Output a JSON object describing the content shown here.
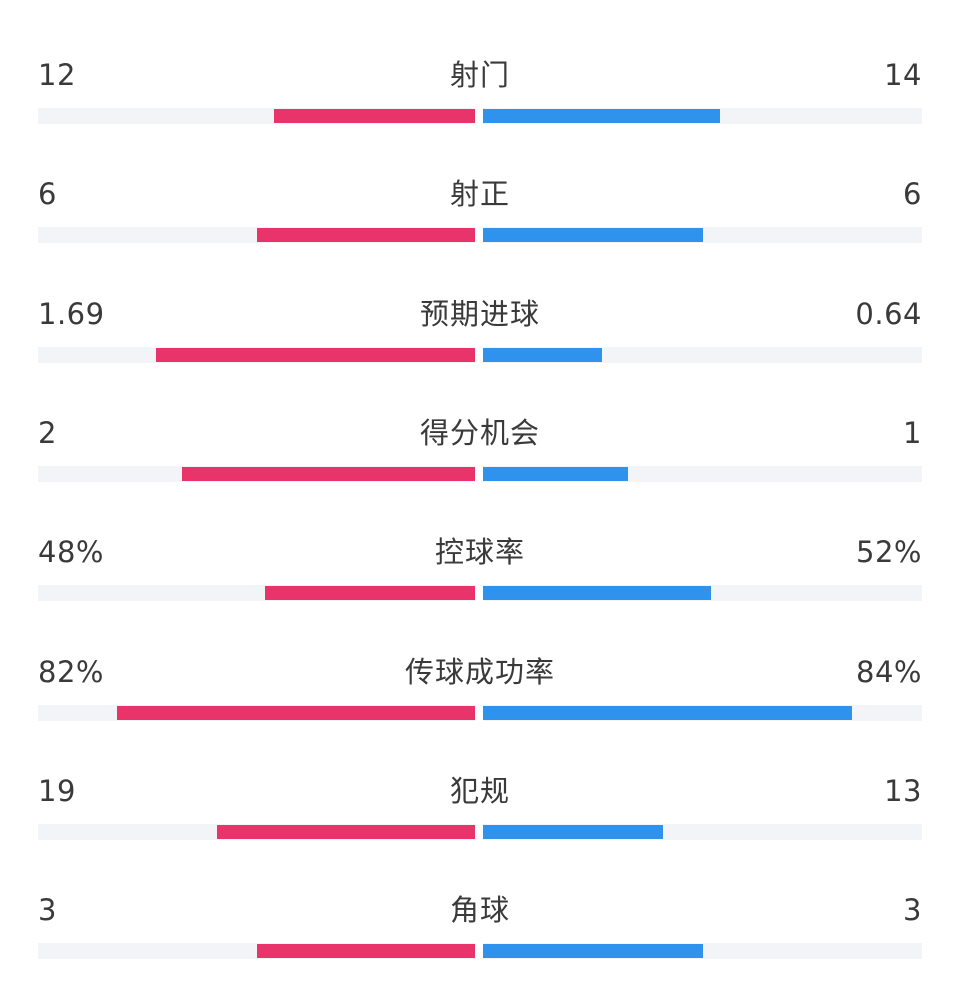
{
  "colors": {
    "home_bar": "#e8336b",
    "away_bar": "#2f93ee",
    "track": "#f3f4f7",
    "text": "#3a3a3a"
  },
  "stats": [
    {
      "name": "射门",
      "home": "12",
      "away": "14",
      "home_fill": 0.46,
      "away_fill": 0.54
    },
    {
      "name": "射正",
      "home": "6",
      "away": "6",
      "home_fill": 0.5,
      "away_fill": 0.5
    },
    {
      "name": "预期进球",
      "home": "1.69",
      "away": "0.64",
      "home_fill": 0.73,
      "away_fill": 0.27
    },
    {
      "name": "得分机会",
      "home": "2",
      "away": "1",
      "home_fill": 0.67,
      "away_fill": 0.33
    },
    {
      "name": "控球率",
      "home": "48%",
      "away": "52%",
      "home_fill": 0.48,
      "away_fill": 0.52
    },
    {
      "name": "传球成功率",
      "home": "82%",
      "away": "84%",
      "home_fill": 0.82,
      "away_fill": 0.84
    },
    {
      "name": "犯规",
      "home": "19",
      "away": "13",
      "home_fill": 0.59,
      "away_fill": 0.41
    },
    {
      "name": "角球",
      "home": "3",
      "away": "3",
      "home_fill": 0.5,
      "away_fill": 0.5
    }
  ]
}
